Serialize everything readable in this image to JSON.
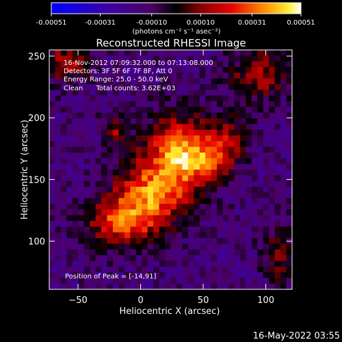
{
  "colorbar": {
    "tick_labels": [
      "-0.00051",
      "-0.00031",
      "-0.00010",
      "0.00010",
      "0.00031",
      "0.00051"
    ],
    "ticks": [
      -0.00051,
      -0.00031,
      -0.0001,
      0.0001,
      0.00031,
      0.00051
    ],
    "range": [
      -0.00051,
      0.00051
    ],
    "units_label": "(photons cm⁻² s⁻¹ asec⁻²)",
    "stops": [
      {
        "t": 0.0,
        "color": "#0000ff"
      },
      {
        "t": 0.22,
        "color": "#3a00a8"
      },
      {
        "t": 0.4,
        "color": "#4c0066"
      },
      {
        "t": 0.5,
        "color": "#000000"
      },
      {
        "t": 0.6,
        "color": "#8a0000"
      },
      {
        "t": 0.72,
        "color": "#e60000"
      },
      {
        "t": 0.85,
        "color": "#ff8c00"
      },
      {
        "t": 0.95,
        "color": "#ffee33"
      },
      {
        "t": 1.0,
        "color": "#ffffff"
      }
    ]
  },
  "chart_data": {
    "type": "heatmap",
    "title": "Reconstructed RHESSI Image",
    "xlabel": "Heliocentric X (arcsec)",
    "ylabel": "Heliocentric Y (arcsec)",
    "xlim": [
      -73,
      121
    ],
    "ylim": [
      61,
      255
    ],
    "x_ticks": [
      -50,
      0,
      50,
      100
    ],
    "y_ticks": [
      100,
      150,
      200,
      250
    ],
    "x_tick_labels": [
      "−50",
      "0",
      "50",
      "100"
    ],
    "y_tick_labels": [
      "100",
      "150",
      "200",
      "250"
    ],
    "grid": false,
    "blobs": [
      {
        "x": 30,
        "y": 175,
        "sx": 18,
        "sy": 20,
        "amp": 0.9
      },
      {
        "x": 10,
        "y": 140,
        "sx": 22,
        "sy": 18,
        "amp": 0.85
      },
      {
        "x": -15,
        "y": 115,
        "sx": 20,
        "sy": 14,
        "amp": 0.75
      },
      {
        "x": 55,
        "y": 165,
        "sx": 14,
        "sy": 12,
        "amp": 0.55
      },
      {
        "x": 70,
        "y": 185,
        "sx": 12,
        "sy": 12,
        "amp": 0.45
      },
      {
        "x": -20,
        "y": 190,
        "sx": 8,
        "sy": 8,
        "amp": 0.5
      },
      {
        "x": -60,
        "y": 245,
        "sx": 14,
        "sy": 12,
        "amp": 0.55
      },
      {
        "x": 95,
        "y": 235,
        "sx": 18,
        "sy": 15,
        "amp": 0.5
      },
      {
        "x": 110,
        "y": 90,
        "sx": 10,
        "sy": 20,
        "amp": 0.35
      }
    ],
    "annotations": [
      "16-Nov-2012 07:09:32.000 to 07:13:08.000",
      "Detectors: 3F 5F 6F 7F 8F, Att 0",
      "Energy Range: 25.0 - 50.0 keV",
      "Clean      Total counts: 3.62E+03"
    ],
    "peak_label": "Position of Peak = [-14,91]"
  },
  "footer": {
    "timestamp": "16-May-2022 03:55"
  }
}
